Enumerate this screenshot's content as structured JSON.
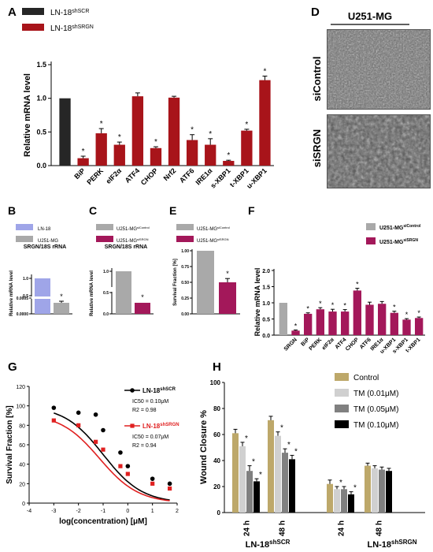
{
  "colors": {
    "dark": "#262626",
    "red": "#a8141a",
    "blue": "#9fa5e8",
    "grey": "#a9a9a9",
    "magenta": "#a3185a",
    "black": "#000000",
    "redline": "#e02020",
    "tan": "#bda86a",
    "lightgrey": "#d0d0d0",
    "midgrey": "#808080"
  },
  "panel_letters": {
    "A": "A",
    "B": "B",
    "C": "C",
    "D": "D",
    "E": "E",
    "F": "F",
    "G": "G",
    "H": "H"
  },
  "common": {
    "star": "*"
  },
  "panel_d": {
    "header": "U251-MG",
    "row1": "siControl",
    "row2": "siSRGN"
  },
  "chart_data": [
    {
      "id": "A",
      "type": "bar",
      "ylabel": "Relative mRNA level",
      "ylim": [
        0,
        1.5
      ],
      "yticks": [
        "0.0",
        "0.5",
        "1.0",
        "1.5"
      ],
      "legend": [
        {
          "base": "LN-18",
          "sup": "shSCR",
          "color": "dark"
        },
        {
          "base": "LN-18",
          "sup": "shSRGN",
          "color": "red"
        }
      ],
      "bars": [
        {
          "label": "",
          "value": 1.0,
          "err": 0.0,
          "color": "dark",
          "star": false
        },
        {
          "label": "BiP",
          "value": 0.11,
          "err": 0.03,
          "color": "red",
          "star": true
        },
        {
          "label": "PERK",
          "value": 0.48,
          "err": 0.07,
          "color": "red",
          "star": true
        },
        {
          "label": "eIF2α",
          "value": 0.31,
          "err": 0.04,
          "color": "red",
          "star": true
        },
        {
          "label": "ATF4",
          "value": 1.03,
          "err": 0.05,
          "color": "red",
          "star": false
        },
        {
          "label": "CHOP",
          "value": 0.26,
          "err": 0.02,
          "color": "red",
          "star": true
        },
        {
          "label": "Nrf2",
          "value": 1.01,
          "err": 0.02,
          "color": "red",
          "star": false
        },
        {
          "label": "ATF6",
          "value": 0.38,
          "err": 0.08,
          "color": "red",
          "star": true
        },
        {
          "label": "IRE1α",
          "value": 0.31,
          "err": 0.09,
          "color": "red",
          "star": true
        },
        {
          "label": "s-XBP1",
          "value": 0.07,
          "err": 0.01,
          "color": "red",
          "star": true
        },
        {
          "label": "t-XBP1",
          "value": 0.52,
          "err": 0.02,
          "color": "red",
          "star": true
        },
        {
          "label": "u-XBP1",
          "value": 1.27,
          "err": 0.06,
          "color": "red",
          "star": true
        }
      ]
    },
    {
      "id": "B",
      "type": "bar",
      "title": "SRGN/18S rRNA",
      "ylabel": "Relative mRNA level",
      "yticks": [
        "1.0",
        "0.5",
        "0.0005",
        "0.0000"
      ],
      "legend": [
        {
          "base": "LN-18",
          "sup": "",
          "color": "blue"
        },
        {
          "base": "U251-MG",
          "sup": "",
          "color": "grey"
        }
      ],
      "bars": [
        {
          "value": 1.0,
          "err": 0.0,
          "color": "blue",
          "star": false
        },
        {
          "value": 0.00035,
          "err": 5e-05,
          "color": "grey",
          "star": true
        }
      ]
    },
    {
      "id": "C",
      "type": "bar",
      "title": "SRGN/18S rRNA",
      "ylabel": "Relative mRNA level",
      "yticks": [
        "1.0",
        "0.5",
        "0.0"
      ],
      "legend": [
        {
          "base": "U251-MG",
          "sup": "siControl",
          "color": "grey"
        },
        {
          "base": "U251-MG",
          "sup": "siSRGN",
          "color": "magenta"
        }
      ],
      "bars": [
        {
          "value": 1.0,
          "err": 0.0,
          "color": "grey",
          "star": false
        },
        {
          "value": 0.26,
          "err": 0.01,
          "color": "magenta",
          "star": true
        }
      ]
    },
    {
      "id": "E",
      "type": "bar",
      "ylabel": "Survival Fraction [%]",
      "ylim": [
        0,
        1.0
      ],
      "yticks": [
        "1.00",
        "0.75",
        "0.50",
        "0.25",
        "0.00"
      ],
      "legend": [
        {
          "base": "U251-MG",
          "sup": "siControl",
          "color": "grey"
        },
        {
          "base": "U251-MG",
          "sup": "siSRGN",
          "color": "magenta"
        }
      ],
      "bars": [
        {
          "value": 1.0,
          "err": 0.0,
          "color": "grey",
          "star": false
        },
        {
          "value": 0.5,
          "err": 0.06,
          "color": "magenta",
          "star": true
        }
      ]
    },
    {
      "id": "F",
      "type": "bar",
      "ylabel": "Relative mRNA level",
      "ylim": [
        0,
        2.0
      ],
      "yticks": [
        "0.0",
        "0.5",
        "1.0",
        "1.5",
        "2.0"
      ],
      "legend": [
        {
          "base": "U251-MG",
          "sup": "siControl",
          "color": "grey"
        },
        {
          "base": "U251-MG",
          "sup": "siSRGN",
          "color": "magenta"
        }
      ],
      "bars": [
        {
          "label": "",
          "value": 1.0,
          "err": 0.0,
          "color": "grey",
          "star": false
        },
        {
          "label": "SRGN",
          "value": 0.14,
          "err": 0.02,
          "color": "magenta",
          "star": true
        },
        {
          "label": "BiP",
          "value": 0.66,
          "err": 0.03,
          "color": "magenta",
          "star": true
        },
        {
          "label": "PERK",
          "value": 0.8,
          "err": 0.05,
          "color": "magenta",
          "star": true
        },
        {
          "label": "eIF2α",
          "value": 0.73,
          "err": 0.07,
          "color": "magenta",
          "star": true
        },
        {
          "label": "ATF4",
          "value": 0.73,
          "err": 0.06,
          "color": "magenta",
          "star": true
        },
        {
          "label": "CHOP",
          "value": 1.38,
          "err": 0.07,
          "color": "magenta",
          "star": true
        },
        {
          "label": "ATF6",
          "value": 0.94,
          "err": 0.08,
          "color": "magenta",
          "star": false
        },
        {
          "label": "IRE1α",
          "value": 0.97,
          "err": 0.07,
          "color": "magenta",
          "star": false
        },
        {
          "label": "u-XBP1",
          "value": 0.69,
          "err": 0.05,
          "color": "magenta",
          "star": true
        },
        {
          "label": "s-XBP1",
          "value": 0.48,
          "err": 0.03,
          "color": "magenta",
          "star": true
        },
        {
          "label": "t-XBP1",
          "value": 0.53,
          "err": 0.03,
          "color": "magenta",
          "star": true
        }
      ]
    },
    {
      "id": "G",
      "type": "scatter",
      "xlabel": "log(concentration) [μM]",
      "ylabel": "Survival Fraction [%]",
      "xlim": [
        -4,
        2
      ],
      "ylim": [
        0,
        120
      ],
      "xticks": [
        "-4",
        "-3",
        "-2",
        "-1",
        "0",
        "1",
        "2"
      ],
      "yticks": [
        "0",
        "20",
        "40",
        "60",
        "80",
        "100",
        "120"
      ],
      "series": [
        {
          "name_base": "LN-18",
          "name_sup": "shSCR",
          "ic50": "IC50 = 0.10μM",
          "r2": "R2 = 0.98",
          "color": "black",
          "marker": "circle",
          "x": [
            -3.0,
            -2.0,
            -1.3,
            -1.0,
            -0.3,
            0.0,
            1.0,
            1.7
          ],
          "y": [
            98,
            93,
            91,
            75,
            52,
            38,
            25,
            20
          ],
          "ic50_log": -1.0,
          "top": 100,
          "slope": 0.55
        },
        {
          "name_base": "LN-18",
          "name_sup": "shSRGN",
          "ic50": "IC50 = 0.07μM",
          "r2": "R2 = 0.94",
          "color": "redline",
          "marker": "square",
          "x": [
            -3.0,
            -2.0,
            -1.3,
            -1.0,
            -0.3,
            0.0,
            1.0,
            1.7
          ],
          "y": [
            85,
            80,
            63,
            55,
            38,
            30,
            20,
            15
          ],
          "ic50_log": -1.15,
          "top": 92,
          "slope": 0.55
        }
      ]
    },
    {
      "id": "H",
      "type": "bar",
      "ylabel": "Wound Closure %",
      "ylim": [
        0,
        100
      ],
      "yticks": [
        "0",
        "20",
        "40",
        "60",
        "80",
        "100"
      ],
      "legend": [
        {
          "name": "Control",
          "color": "tan"
        },
        {
          "name": "TM (0.01μM)",
          "color": "lightgrey"
        },
        {
          "name": "TM (0.05μM)",
          "color": "midgrey"
        },
        {
          "name": "TM (0.10μM)",
          "color": "black"
        }
      ],
      "groups": [
        {
          "label": "24 h",
          "values": [
            61,
            51,
            32,
            24
          ],
          "errs": [
            3,
            3,
            4,
            2
          ],
          "stars": [
            false,
            true,
            true,
            true
          ]
        },
        {
          "label": "48 h",
          "values": [
            71,
            59,
            46,
            41
          ],
          "errs": [
            3,
            3,
            3,
            3
          ],
          "stars": [
            false,
            true,
            true,
            true
          ]
        },
        {
          "label": "24 h",
          "values": [
            22,
            18,
            18,
            14
          ],
          "errs": [
            3,
            2,
            2,
            2
          ],
          "stars": [
            false,
            true,
            false,
            true
          ]
        },
        {
          "label": "48 h",
          "values": [
            36,
            34,
            33,
            32
          ],
          "errs": [
            2,
            2,
            2,
            2
          ],
          "stars": [
            false,
            false,
            false,
            false
          ]
        }
      ],
      "group_labels": [
        {
          "base": "LN-18",
          "sup": "shSCR"
        },
        {
          "base": "LN-18",
          "sup": "shSRGN"
        }
      ]
    }
  ]
}
